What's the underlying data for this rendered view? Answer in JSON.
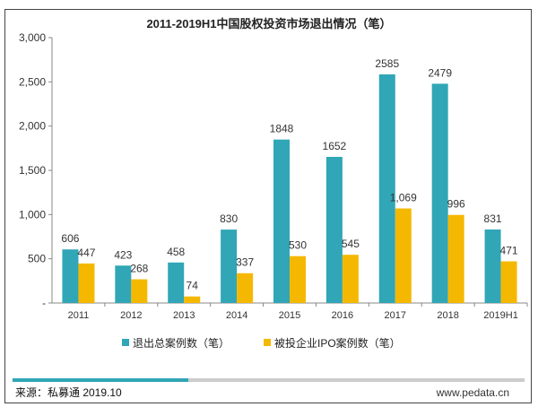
{
  "chart_data": {
    "type": "bar",
    "title": "2011-2019H1中国股权投资市场退出情况（笔）",
    "categories": [
      "2011",
      "2012",
      "2013",
      "2014",
      "2015",
      "2016",
      "2017",
      "2018",
      "2019H1"
    ],
    "series": [
      {
        "name": "退出总案例数（笔）",
        "color": "#30a6b6",
        "values": [
          606,
          423,
          458,
          830,
          1848,
          1652,
          2585,
          2479,
          831
        ],
        "labels": [
          "606",
          "423",
          "458",
          "830",
          "1848",
          "1652",
          "2585",
          "2479",
          "831"
        ]
      },
      {
        "name": "被投企业IPO案例数（笔）",
        "color": "#f5b800",
        "values": [
          447,
          268,
          74,
          337,
          530,
          545,
          1069,
          996,
          471
        ],
        "labels": [
          "447",
          "268",
          "74",
          "337",
          "530",
          "545",
          "1,069",
          "996",
          "471"
        ]
      }
    ],
    "ylim": [
      0,
      3000
    ],
    "yticks": [
      0,
      500,
      1000,
      1500,
      2000,
      2500,
      3000
    ],
    "ytick_labels": [
      "-",
      "500",
      "1,000",
      "1,500",
      "2,000",
      "2,500",
      "3,000"
    ],
    "grid": false,
    "legend_position": "bottom"
  },
  "footer": {
    "source": "来源：私募通 2019.10",
    "website": "www.pedata.cn"
  }
}
